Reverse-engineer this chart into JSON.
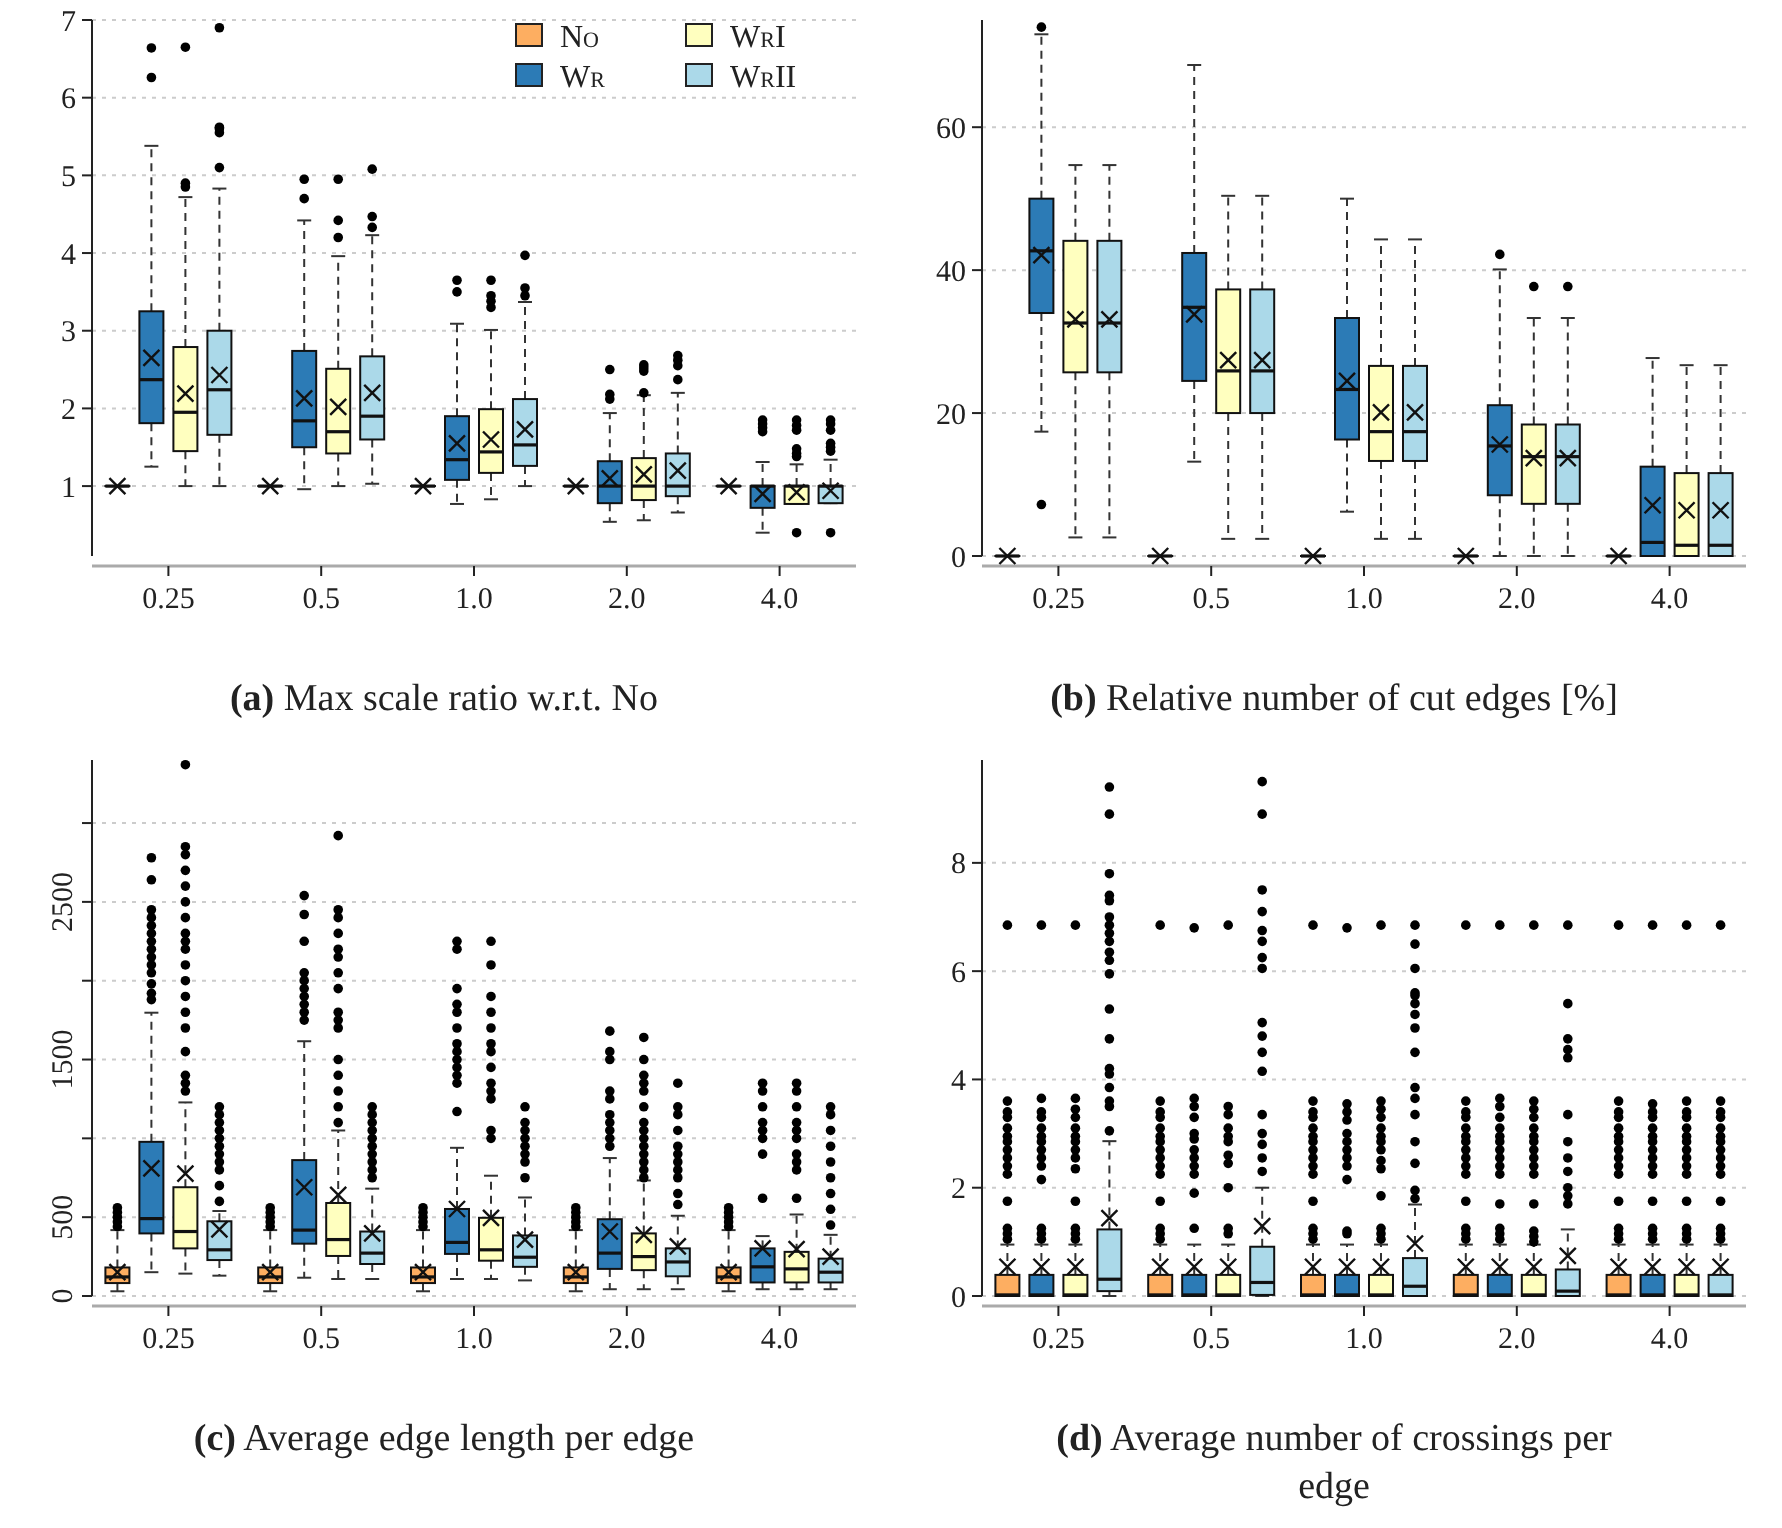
{
  "chart_data": [
    {
      "type": "box",
      "title": "(a) Max scale ratio w.r.t. No",
      "categories": [
        "0.25",
        "0.5",
        "1.0",
        "2.0",
        "4.0"
      ],
      "ylim": [
        0.1,
        7
      ],
      "yticks": [
        1,
        2,
        3,
        4,
        5,
        6,
        7
      ],
      "grid": "y",
      "legend": "top right",
      "series": [
        {
          "name": "No",
          "color": "#fdae61",
          "boxes": [
            {
              "low": 1,
              "q1": 1,
              "median": 1,
              "q3": 1,
              "high": 1,
              "mean": 1
            },
            {
              "low": 1,
              "q1": 1,
              "median": 1,
              "q3": 1,
              "high": 1,
              "mean": 1
            },
            {
              "low": 1,
              "q1": 1,
              "median": 1,
              "q3": 1,
              "high": 1,
              "mean": 1
            },
            {
              "low": 1,
              "q1": 1,
              "median": 1,
              "q3": 1,
              "high": 1,
              "mean": 1
            },
            {
              "low": 1,
              "q1": 1,
              "median": 1,
              "q3": 1,
              "high": 1,
              "mean": 1
            }
          ]
        },
        {
          "name": "Wr",
          "color": "#2c7bb6",
          "boxes": [
            {
              "low": 1.25,
              "q1": 1.81,
              "median": 2.37,
              "q3": 3.25,
              "high": 5.38,
              "mean": 2.65,
              "outliers": [
                6.26,
                6.64
              ]
            },
            {
              "low": 0.96,
              "q1": 1.5,
              "median": 1.84,
              "q3": 2.74,
              "high": 4.42,
              "mean": 2.13,
              "outliers": [
                4.7,
                4.95
              ]
            },
            {
              "low": 0.77,
              "q1": 1.08,
              "median": 1.34,
              "q3": 1.9,
              "high": 3.09,
              "mean": 1.55,
              "outliers": [
                3.5,
                3.65
              ]
            },
            {
              "low": 0.54,
              "q1": 0.78,
              "median": 1.0,
              "q3": 1.32,
              "high": 1.94,
              "mean": 1.1,
              "outliers": [
                2.12,
                2.18,
                2.5
              ]
            },
            {
              "low": 0.4,
              "q1": 0.72,
              "median": 1.0,
              "q3": 1.0,
              "high": 1.31,
              "mean": 0.9,
              "outliers": [
                1.7,
                1.75,
                1.8,
                1.85
              ]
            }
          ]
        },
        {
          "name": "WrI",
          "color": "#ffffbf",
          "boxes": [
            {
              "low": 1.0,
              "q1": 1.45,
              "median": 1.95,
              "q3": 2.79,
              "high": 4.72,
              "mean": 2.19,
              "outliers": [
                4.85,
                4.9,
                6.65
              ]
            },
            {
              "low": 1.0,
              "q1": 1.42,
              "median": 1.7,
              "q3": 2.51,
              "high": 3.96,
              "mean": 2.02,
              "outliers": [
                4.2,
                4.42,
                4.95
              ]
            },
            {
              "low": 0.83,
              "q1": 1.17,
              "median": 1.44,
              "q3": 1.99,
              "high": 3.01,
              "mean": 1.6,
              "outliers": [
                3.3,
                3.38,
                3.45,
                3.65
              ]
            },
            {
              "low": 0.56,
              "q1": 0.82,
              "median": 1.0,
              "q3": 1.36,
              "high": 2.17,
              "mean": 1.15,
              "outliers": [
                2.2,
                2.48,
                2.52,
                2.56
              ]
            },
            {
              "low": 0.77,
              "q1": 0.77,
              "median": 1.0,
              "q3": 1.0,
              "high": 1.28,
              "mean": 0.92,
              "outliers": [
                0.4,
                1.38,
                1.42,
                1.48,
                1.72,
                1.78,
                1.85
              ]
            }
          ]
        },
        {
          "name": "WrII",
          "color": "#abd9e9",
          "boxes": [
            {
              "low": 1.0,
              "q1": 1.66,
              "median": 2.24,
              "q3": 3.0,
              "high": 4.83,
              "mean": 2.43,
              "outliers": [
                5.1,
                5.55,
                5.6,
                5.62,
                6.9
              ]
            },
            {
              "low": 1.03,
              "q1": 1.6,
              "median": 1.9,
              "q3": 2.67,
              "high": 4.23,
              "mean": 2.2,
              "outliers": [
                4.33,
                4.47,
                5.08
              ]
            },
            {
              "low": 1.0,
              "q1": 1.26,
              "median": 1.53,
              "q3": 2.12,
              "high": 3.37,
              "mean": 1.73,
              "outliers": [
                3.45,
                3.55,
                3.97
              ]
            },
            {
              "low": 0.66,
              "q1": 0.87,
              "median": 1.0,
              "q3": 1.42,
              "high": 2.2,
              "mean": 1.2,
              "outliers": [
                2.37,
                2.55,
                2.62,
                2.68
              ]
            },
            {
              "low": 0.78,
              "q1": 0.78,
              "median": 1.0,
              "q3": 1.0,
              "high": 1.34,
              "mean": 0.94,
              "outliers": [
                0.4,
                1.45,
                1.5,
                1.55,
                1.72,
                1.8,
                1.85
              ]
            }
          ]
        }
      ]
    },
    {
      "type": "box",
      "title": "(b) Relative number of cut edges [%]",
      "categories": [
        "0.25",
        "0.5",
        "1.0",
        "2.0",
        "4.0"
      ],
      "ylim": [
        0,
        75
      ],
      "yticks": [
        0,
        20,
        40,
        60
      ],
      "grid": "y",
      "series": [
        {
          "color": "#fdae61",
          "boxes": [
            {
              "low": 0,
              "q1": 0,
              "median": 0,
              "q3": 0,
              "high": 0,
              "mean": 0
            },
            {
              "low": 0,
              "q1": 0,
              "median": 0,
              "q3": 0,
              "high": 0,
              "mean": 0
            },
            {
              "low": 0,
              "q1": 0,
              "median": 0,
              "q3": 0,
              "high": 0,
              "mean": 0
            },
            {
              "low": 0,
              "q1": 0,
              "median": 0,
              "q3": 0,
              "high": 0,
              "mean": 0
            },
            {
              "low": 0,
              "q1": 0,
              "median": 0,
              "q3": 0,
              "high": 0,
              "mean": 0
            }
          ]
        },
        {
          "color": "#2c7bb6",
          "boxes": [
            {
              "low": 17.4,
              "q1": 34,
              "median": 42.7,
              "q3": 50,
              "high": 73,
              "mean": 42.1,
              "outliers": [
                7.2,
                74
              ]
            },
            {
              "low": 13.2,
              "q1": 24.5,
              "median": 34.8,
              "q3": 42.4,
              "high": 68.7,
              "mean": 33.8
            },
            {
              "low": 6.2,
              "q1": 16.3,
              "median": 23.3,
              "q3": 33.3,
              "high": 50,
              "mean": 24.5
            },
            {
              "low": 0,
              "q1": 8.5,
              "median": 15.4,
              "q3": 21.1,
              "high": 40.1,
              "mean": 15.6,
              "outliers": [
                42.2
              ]
            },
            {
              "low": 0,
              "q1": 0,
              "median": 1.9,
              "q3": 12.5,
              "high": 27.7,
              "mean": 7.1
            }
          ]
        },
        {
          "color": "#ffffbf",
          "boxes": [
            {
              "low": 2.6,
              "q1": 25.7,
              "median": 32.6,
              "q3": 44.1,
              "high": 54.7,
              "mean": 33.1
            },
            {
              "low": 2.4,
              "q1": 20,
              "median": 25.9,
              "q3": 37.3,
              "high": 50.4,
              "mean": 27.4
            },
            {
              "low": 2.4,
              "q1": 13.3,
              "median": 17.4,
              "q3": 26.6,
              "high": 44.3,
              "mean": 20.1
            },
            {
              "low": 0,
              "q1": 7.3,
              "median": 13.9,
              "q3": 18.4,
              "high": 33.3,
              "mean": 13.7,
              "outliers": [
                37.7
              ]
            },
            {
              "low": 0,
              "q1": 0,
              "median": 1.5,
              "q3": 11.6,
              "high": 26.7,
              "mean": 6.4
            }
          ]
        },
        {
          "color": "#abd9e9",
          "boxes": [
            {
              "low": 2.6,
              "q1": 25.7,
              "median": 32.6,
              "q3": 44.1,
              "high": 54.7,
              "mean": 33.1
            },
            {
              "low": 2.4,
              "q1": 20,
              "median": 25.9,
              "q3": 37.3,
              "high": 50.4,
              "mean": 27.4
            },
            {
              "low": 2.4,
              "q1": 13.3,
              "median": 17.4,
              "q3": 26.6,
              "high": 44.3,
              "mean": 20.1
            },
            {
              "low": 0,
              "q1": 7.3,
              "median": 13.9,
              "q3": 18.4,
              "high": 33.3,
              "mean": 13.7,
              "outliers": [
                37.7
              ]
            },
            {
              "low": 0,
              "q1": 0,
              "median": 1.5,
              "q3": 11.6,
              "high": 26.7,
              "mean": 6.4
            }
          ]
        }
      ]
    },
    {
      "type": "box",
      "title": "(c) Average edge length per edge",
      "categories": [
        "0.25",
        "0.5",
        "1.0",
        "2.0",
        "4.0"
      ],
      "ylim": [
        0,
        3400
      ],
      "yticks": [
        0,
        500,
        {
          "value": 1000,
          "label": null
        },
        1500,
        {
          "value": 2000,
          "label": null
        },
        2500,
        {
          "value": 3000,
          "label": null
        }
      ],
      "grid": "y",
      "series": [
        {
          "color": "#fdae61",
          "boxes": [
            {
              "low": 30,
              "q1": 82,
              "median": 121,
              "q3": 181,
              "high": 418,
              "mean": 151,
              "outliers": [
                440,
                470,
                500,
                530,
                560
              ]
            },
            {
              "low": 30,
              "q1": 82,
              "median": 121,
              "q3": 181,
              "high": 418,
              "mean": 151,
              "outliers": [
                440,
                470,
                500,
                530,
                560
              ]
            },
            {
              "low": 30,
              "q1": 82,
              "median": 121,
              "q3": 181,
              "high": 418,
              "mean": 151,
              "outliers": [
                440,
                470,
                500,
                530,
                560
              ]
            },
            {
              "low": 30,
              "q1": 82,
              "median": 121,
              "q3": 181,
              "high": 418,
              "mean": 151,
              "outliers": [
                440,
                470,
                500,
                530,
                560
              ]
            },
            {
              "low": 30,
              "q1": 82,
              "median": 121,
              "q3": 181,
              "high": 418,
              "mean": 151,
              "outliers": [
                440,
                470,
                500,
                530,
                560
              ]
            }
          ]
        },
        {
          "color": "#2c7bb6",
          "boxes": [
            {
              "low": 151,
              "q1": 397,
              "median": 491,
              "q3": 978,
              "high": 1797,
              "mean": 810,
              "outliers": [
                1880,
                1920,
                1980,
                2050,
                2100,
                2150,
                2200,
                2250,
                2300,
                2350,
                2400,
                2450,
                2640,
                2780
              ]
            },
            {
              "low": 116,
              "q1": 332,
              "median": 418,
              "q3": 862,
              "high": 1616,
              "mean": 690,
              "outliers": [
                1750,
                1800,
                1850,
                1900,
                1950,
                2000,
                2050,
                2250,
                2420,
                2540
              ]
            },
            {
              "low": 108,
              "q1": 267,
              "median": 340,
              "q3": 552,
              "high": 940,
              "mean": 552,
              "outliers": [
                1170,
                1350,
                1400,
                1450,
                1500,
                1550,
                1600,
                1700,
                1800,
                1850,
                1950,
                2200,
                2250
              ]
            },
            {
              "low": 43,
              "q1": 172,
              "median": 272,
              "q3": 487,
              "high": 875,
              "mean": 409,
              "outliers": [
                950,
                1000,
                1050,
                1100,
                1150,
                1250,
                1300,
                1500,
                1550,
                1680
              ]
            },
            {
              "low": 43,
              "q1": 86,
              "median": 185,
              "q3": 302,
              "high": 380,
              "mean": 302,
              "outliers": [
                620,
                900,
                1000,
                1050,
                1100,
                1200,
                1300,
                1350
              ]
            }
          ]
        },
        {
          "color": "#ffffbf",
          "boxes": [
            {
              "low": 142,
              "q1": 302,
              "median": 409,
              "q3": 690,
              "high": 1228,
              "mean": 776,
              "outliers": [
                1300,
                1350,
                1400,
                1550,
                1700,
                1800,
                1900,
                2000,
                2100,
                2200,
                2250,
                2300,
                2400,
                2500,
                2600,
                2700,
                2800,
                2850,
                3370
              ]
            },
            {
              "low": 108,
              "q1": 254,
              "median": 358,
              "q3": 590,
              "high": 1050,
              "mean": 642,
              "outliers": [
                1100,
                1200,
                1300,
                1400,
                1500,
                1700,
                1750,
                1800,
                1950,
                2050,
                2150,
                2200,
                2300,
                2400,
                2450,
                2920
              ]
            },
            {
              "low": 108,
              "q1": 224,
              "median": 293,
              "q3": 496,
              "high": 763,
              "mean": 496,
              "outliers": [
                1000,
                1050,
                1250,
                1300,
                1350,
                1450,
                1550,
                1600,
                1700,
                1800,
                1900,
                2100,
                2250
              ]
            },
            {
              "low": 43,
              "q1": 164,
              "median": 250,
              "q3": 397,
              "high": 733,
              "mean": 388,
              "outliers": [
                750,
                800,
                850,
                900,
                950,
                1000,
                1050,
                1100,
                1200,
                1300,
                1350,
                1400,
                1500,
                1640
              ]
            },
            {
              "low": 43,
              "q1": 86,
              "median": 172,
              "q3": 280,
              "high": 517,
              "mean": 297,
              "outliers": [
                620,
                800,
                850,
                900,
                1000,
                1050,
                1100,
                1200,
                1300,
                1350
              ]
            }
          ]
        },
        {
          "color": "#abd9e9",
          "boxes": [
            {
              "low": 129,
              "q1": 228,
              "median": 293,
              "q3": 474,
              "high": 539,
              "mean": 422,
              "outliers": [
                600,
                700,
                800,
                850,
                900,
                950,
                1000,
                1050,
                1100,
                1150,
                1200
              ]
            },
            {
              "low": 108,
              "q1": 203,
              "median": 272,
              "q3": 409,
              "high": 681,
              "mean": 397,
              "outliers": [
                750,
                800,
                850,
                900,
                950,
                1000,
                1050,
                1100,
                1150,
                1200
              ]
            },
            {
              "low": 99,
              "q1": 185,
              "median": 246,
              "q3": 384,
              "high": 625,
              "mean": 358,
              "outliers": [
                750,
                850,
                900,
                950,
                1000,
                1050,
                1100,
                1200
              ]
            },
            {
              "low": 43,
              "q1": 125,
              "median": 216,
              "q3": 302,
              "high": 509,
              "mean": 315,
              "outliers": [
                580,
                650,
                750,
                800,
                850,
                900,
                950,
                1050,
                1150,
                1200,
                1350
              ]
            },
            {
              "low": 43,
              "q1": 86,
              "median": 151,
              "q3": 237,
              "high": 388,
              "mean": 250,
              "outliers": [
                450,
                550,
                650,
                750,
                850,
                950,
                1050,
                1150,
                1200
              ]
            }
          ]
        }
      ]
    },
    {
      "type": "box",
      "title": "(d) Average number of crossings per edge",
      "categories": [
        "0.25",
        "0.5",
        "1.0",
        "2.0",
        "4.0"
      ],
      "ylim": [
        0,
        9.9
      ],
      "yticks": [
        0,
        2,
        4,
        6,
        8
      ],
      "grid": "y",
      "series": [
        {
          "color": "#fdae61",
          "boxes": [
            {
              "low": 0,
              "q1": 0,
              "median": 0.02,
              "q3": 0.39,
              "high": 0.95,
              "mean": 0.54,
              "outliers": [
                1.05,
                1.15,
                1.25,
                1.75,
                2.25,
                2.4,
                2.55,
                2.7,
                2.85,
                2.95,
                3.1,
                3.3,
                3.4,
                3.6,
                6.85
              ]
            },
            {
              "low": 0,
              "q1": 0,
              "median": 0.02,
              "q3": 0.39,
              "high": 0.95,
              "mean": 0.54,
              "outliers": [
                1.05,
                1.15,
                1.25,
                1.75,
                2.25,
                2.4,
                2.55,
                2.7,
                2.85,
                2.95,
                3.1,
                3.3,
                3.4,
                3.6,
                6.85
              ]
            },
            {
              "low": 0,
              "q1": 0,
              "median": 0.02,
              "q3": 0.39,
              "high": 0.95,
              "mean": 0.54,
              "outliers": [
                1.05,
                1.15,
                1.25,
                1.75,
                2.25,
                2.4,
                2.55,
                2.7,
                2.85,
                2.95,
                3.1,
                3.3,
                3.4,
                3.6,
                6.85
              ]
            },
            {
              "low": 0,
              "q1": 0,
              "median": 0.02,
              "q3": 0.39,
              "high": 0.95,
              "mean": 0.54,
              "outliers": [
                1.05,
                1.15,
                1.25,
                1.75,
                2.25,
                2.4,
                2.55,
                2.7,
                2.85,
                2.95,
                3.1,
                3.3,
                3.4,
                3.6,
                6.85
              ]
            },
            {
              "low": 0,
              "q1": 0,
              "median": 0.02,
              "q3": 0.39,
              "high": 0.95,
              "mean": 0.54,
              "outliers": [
                1.05,
                1.15,
                1.25,
                1.75,
                2.25,
                2.4,
                2.55,
                2.7,
                2.85,
                2.95,
                3.1,
                3.3,
                3.4,
                3.6,
                6.85
              ]
            }
          ]
        },
        {
          "color": "#2c7bb6",
          "boxes": [
            {
              "low": 0,
              "q1": 0,
              "median": 0.02,
              "q3": 0.39,
              "high": 0.95,
              "mean": 0.54,
              "outliers": [
                1.05,
                1.15,
                1.25,
                2.15,
                2.4,
                2.55,
                2.7,
                2.85,
                2.95,
                3.1,
                3.3,
                3.4,
                3.65,
                6.85
              ]
            },
            {
              "low": 0,
              "q1": 0,
              "median": 0.02,
              "q3": 0.39,
              "high": 0.95,
              "mean": 0.54,
              "outliers": [
                1.25,
                1.9,
                2.25,
                2.4,
                2.55,
                2.7,
                2.9,
                3.0,
                3.3,
                3.5,
                3.65,
                6.8
              ]
            },
            {
              "low": 0,
              "q1": 0,
              "median": 0.02,
              "q3": 0.39,
              "high": 0.95,
              "mean": 0.54,
              "outliers": [
                1.15,
                1.2,
                2.15,
                2.4,
                2.55,
                2.7,
                2.85,
                3.0,
                3.25,
                3.4,
                3.55,
                6.8
              ]
            },
            {
              "low": 0,
              "q1": 0,
              "median": 0.02,
              "q3": 0.39,
              "high": 0.95,
              "mean": 0.54,
              "outliers": [
                1.05,
                1.15,
                1.25,
                1.7,
                2.25,
                2.4,
                2.55,
                2.7,
                2.85,
                2.95,
                3.1,
                3.3,
                3.5,
                3.65,
                6.85
              ]
            },
            {
              "low": 0,
              "q1": 0,
              "median": 0.02,
              "q3": 0.39,
              "high": 0.95,
              "mean": 0.54,
              "outliers": [
                1.05,
                1.15,
                1.25,
                1.75,
                2.25,
                2.4,
                2.55,
                2.7,
                2.85,
                2.95,
                3.1,
                3.3,
                3.4,
                3.55,
                6.85
              ]
            }
          ]
        },
        {
          "color": "#ffffbf",
          "boxes": [
            {
              "low": 0,
              "q1": 0,
              "median": 0.02,
              "q3": 0.39,
              "high": 0.95,
              "mean": 0.54,
              "outliers": [
                1.05,
                1.15,
                1.25,
                1.75,
                2.35,
                2.55,
                2.7,
                2.85,
                2.95,
                3.1,
                3.3,
                3.45,
                3.65,
                6.85
              ]
            },
            {
              "low": 0,
              "q1": 0,
              "median": 0.02,
              "q3": 0.39,
              "high": 0.95,
              "mean": 0.54,
              "outliers": [
                1.15,
                1.25,
                2.0,
                2.45,
                2.6,
                2.85,
                2.95,
                3.1,
                3.35,
                3.5,
                6.85
              ]
            },
            {
              "low": 0,
              "q1": 0,
              "median": 0.02,
              "q3": 0.39,
              "high": 0.95,
              "mean": 0.54,
              "outliers": [
                1.05,
                1.15,
                1.25,
                1.85,
                2.35,
                2.5,
                2.7,
                2.85,
                2.95,
                3.1,
                3.3,
                3.45,
                3.6,
                6.85
              ]
            },
            {
              "low": 0,
              "q1": 0,
              "median": 0.02,
              "q3": 0.39,
              "high": 0.95,
              "mean": 0.54,
              "outliers": [
                1.0,
                1.1,
                1.2,
                1.7,
                2.25,
                2.4,
                2.55,
                2.7,
                2.85,
                2.95,
                3.1,
                3.3,
                3.45,
                3.6,
                6.85
              ]
            },
            {
              "low": 0,
              "q1": 0,
              "median": 0.02,
              "q3": 0.39,
              "high": 0.95,
              "mean": 0.54,
              "outliers": [
                1.05,
                1.15,
                1.25,
                1.75,
                2.25,
                2.4,
                2.55,
                2.7,
                2.85,
                2.95,
                3.1,
                3.3,
                3.4,
                3.6,
                6.85
              ]
            }
          ]
        },
        {
          "color": "#abd9e9",
          "boxes": [
            {
              "low": 0,
              "q1": 0.09,
              "median": 0.31,
              "q3": 1.23,
              "high": 2.86,
              "mean": 1.44,
              "outliers": [
                3.05,
                3.5,
                3.6,
                3.85,
                4.1,
                4.2,
                4.75,
                5.3,
                5.95,
                6.2,
                6.35,
                6.55,
                6.7,
                6.85,
                7.0,
                7.3,
                7.4,
                7.8,
                8.9,
                9.4
              ]
            },
            {
              "low": 0,
              "q1": 0.02,
              "median": 0.25,
              "q3": 0.91,
              "high": 2.0,
              "mean": 1.29,
              "outliers": [
                2.3,
                2.55,
                2.8,
                3.0,
                3.35,
                4.15,
                4.5,
                4.8,
                5.05,
                6.05,
                6.25,
                6.55,
                6.75,
                7.1,
                7.5,
                8.9,
                9.5
              ]
            },
            {
              "low": 0,
              "q1": 0,
              "median": 0.18,
              "q3": 0.7,
              "high": 1.69,
              "mean": 0.97,
              "outliers": [
                1.8,
                1.95,
                2.45,
                2.85,
                3.35,
                3.65,
                3.85,
                4.5,
                4.95,
                5.2,
                5.4,
                5.55,
                5.6,
                6.05,
                6.5,
                6.85
              ]
            },
            {
              "low": 0,
              "q1": 0,
              "median": 0.09,
              "q3": 0.49,
              "high": 1.23,
              "mean": 0.74,
              "outliers": [
                1.7,
                1.85,
                2.0,
                2.3,
                2.55,
                2.85,
                3.35,
                4.4,
                4.55,
                4.75,
                5.4,
                6.85
              ]
            },
            {
              "low": 0,
              "q1": 0,
              "median": 0.02,
              "q3": 0.39,
              "high": 0.95,
              "mean": 0.54,
              "outliers": [
                1.05,
                1.15,
                1.25,
                1.75,
                2.25,
                2.4,
                2.55,
                2.7,
                2.85,
                2.95,
                3.1,
                3.3,
                3.4,
                3.6,
                6.85
              ]
            }
          ]
        }
      ]
    }
  ]
}
